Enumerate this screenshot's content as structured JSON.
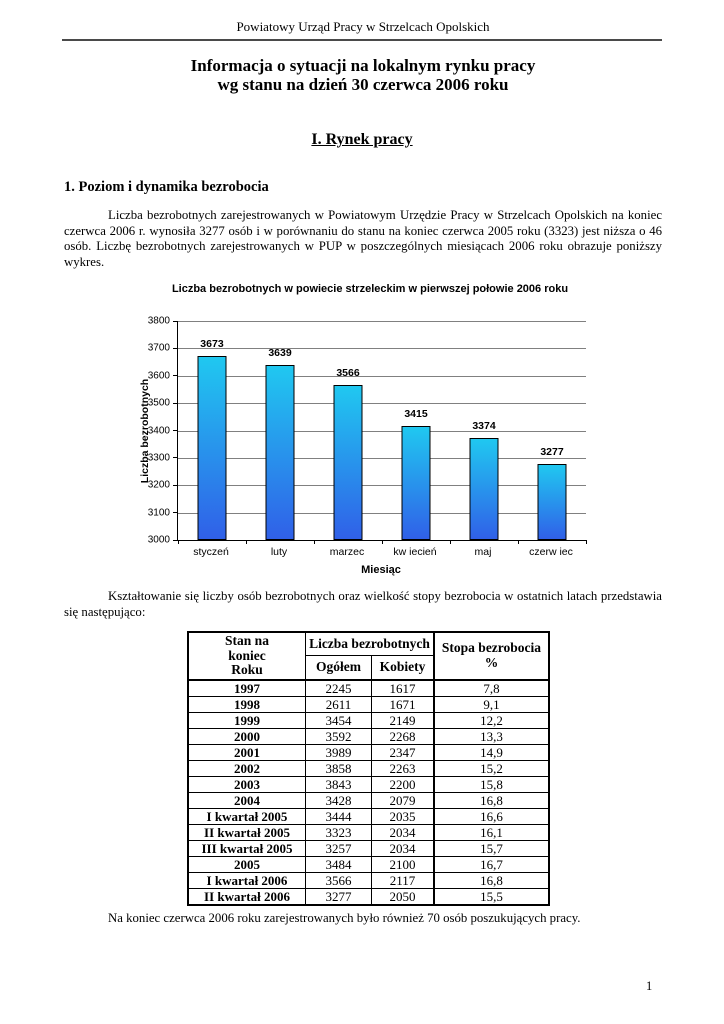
{
  "document": {
    "header": "Powiatowy Urząd Pracy w Strzelcach Opolskich",
    "title": "Informacja o sytuacji na lokalnym rynku pracy\nwg stanu na dzień 30 czerwca 2006 roku",
    "section_heading": "I. Rynek pracy",
    "subsection_heading": "1. Poziom i dynamika bezrobocia",
    "intro_paragraph": "Liczba bezrobotnych zarejestrowanych w Powiatowym Urzędzie Pracy w Strzelcach Opolskich na koniec czerwca 2006 r. wynosiła 3277 osób i w porównaniu do stanu na koniec czerwca 2005 roku (3323) jest niższa o 46 osób. Liczbę bezrobotnych zarejestrowanych w PUP w poszczególnych miesiącach 2006 roku obrazuje poniższy wykres.",
    "table_intro_paragraph": "Kształtowanie się liczby osób bezrobotnych oraz wielkość stopy bezrobocia w ostatnich latach przedstawia się następująco:",
    "closing_paragraph": "Na koniec czerwca 2006 roku zarejestrowanych było również 70 osób poszukujących pracy.",
    "page_number": "1"
  },
  "chart_data": {
    "type": "bar",
    "title": "Liczba bezrobotnych w powiecie strzeleckim w pierwszej połowie 2006 roku",
    "categories": [
      "styczeń",
      "luty",
      "marzec",
      "kw iecień",
      "maj",
      "czerw iec"
    ],
    "values": [
      3673,
      3639,
      3566,
      3415,
      3374,
      3277
    ],
    "xlabel": "Miesiąc",
    "ylabel": "Liczba bezrobotnych",
    "ylim": [
      3000,
      3800
    ],
    "ytick_step": 100,
    "grid": true,
    "legend": "none",
    "bar_color_top": "#20C8F0",
    "bar_color_bottom": "#3060E8",
    "bar_border_color": "#000000",
    "gridline_color": "#808080"
  },
  "table": {
    "header": {
      "period": "Stan na\nkoniec\nRoku",
      "group": "Liczba bezrobotnych",
      "total": "Ogółem",
      "women": "Kobiety",
      "rate": "Stopa bezrobocia\n%"
    },
    "rows": [
      {
        "period": "1997",
        "total": "2245",
        "women": "1617",
        "rate": "7,8"
      },
      {
        "period": "1998",
        "total": "2611",
        "women": "1671",
        "rate": "9,1"
      },
      {
        "period": "1999",
        "total": "3454",
        "women": "2149",
        "rate": "12,2"
      },
      {
        "period": "2000",
        "total": "3592",
        "women": "2268",
        "rate": "13,3"
      },
      {
        "period": "2001",
        "total": "3989",
        "women": "2347",
        "rate": "14,9"
      },
      {
        "period": "2002",
        "total": "3858",
        "women": "2263",
        "rate": "15,2"
      },
      {
        "period": "2003",
        "total": "3843",
        "women": "2200",
        "rate": "15,8"
      },
      {
        "period": "2004",
        "total": "3428",
        "women": "2079",
        "rate": "16,8"
      },
      {
        "period": "I kwartał 2005",
        "total": "3444",
        "women": "2035",
        "rate": "16,6"
      },
      {
        "period": "II kwartał 2005",
        "total": "3323",
        "women": "2034",
        "rate": "16,1"
      },
      {
        "period": "III kwartał 2005",
        "total": "3257",
        "women": "2034",
        "rate": "15,7"
      },
      {
        "period": "2005",
        "total": "3484",
        "women": "2100",
        "rate": "16,7"
      },
      {
        "period": "I kwartał 2006",
        "total": "3566",
        "women": "2117",
        "rate": "16,8"
      },
      {
        "period": "II kwartał 2006",
        "total": "3277",
        "women": "2050",
        "rate": "15,5"
      }
    ]
  }
}
